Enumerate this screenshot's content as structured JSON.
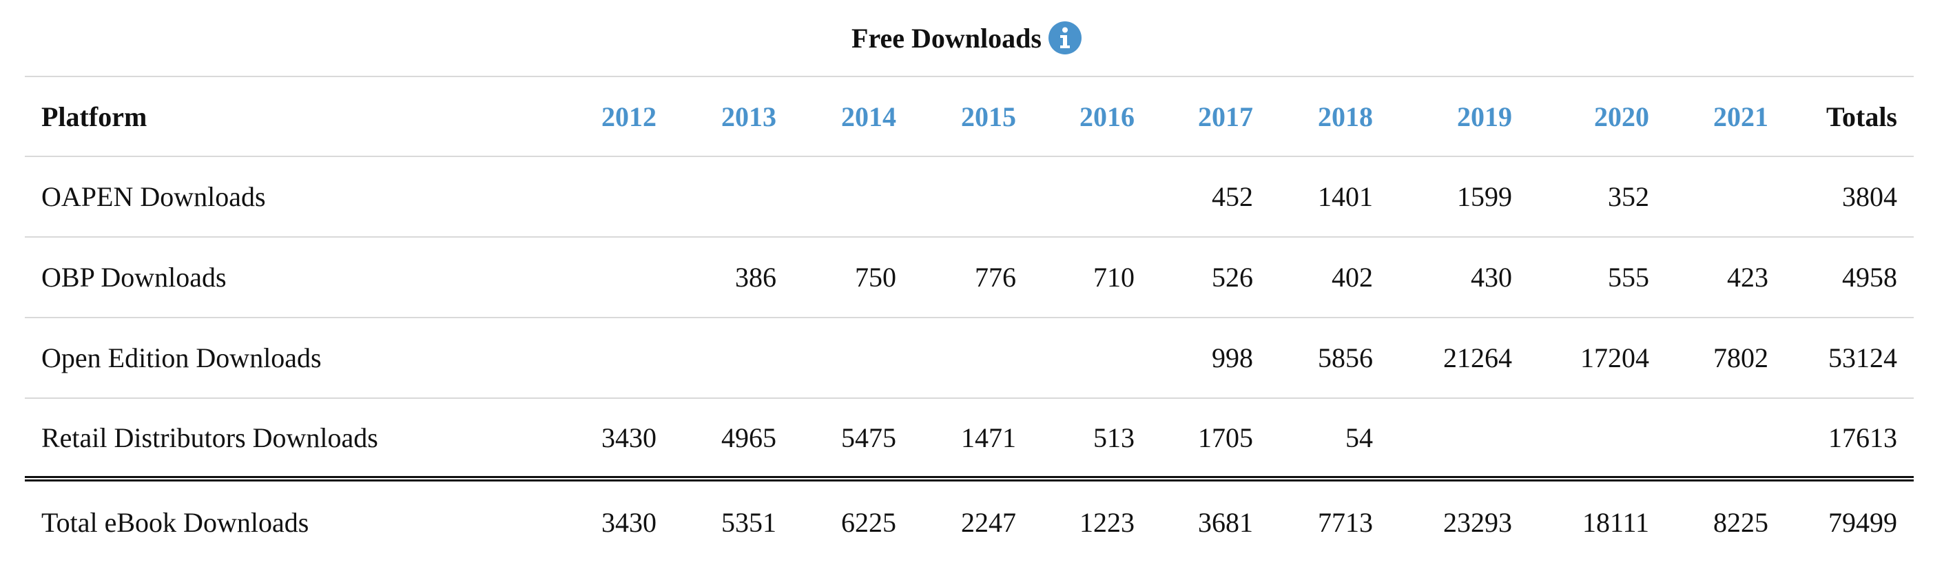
{
  "title": "Free Downloads",
  "info_icon": "info-circle-icon",
  "colors": {
    "year_link": "#4a93cc",
    "info_icon_fill": "#4a93cc",
    "divider": "#d9d9d9",
    "text": "#111111"
  },
  "table": {
    "platform_header": "Platform",
    "years": [
      "2012",
      "2013",
      "2014",
      "2015",
      "2016",
      "2017",
      "2018",
      "2019",
      "2020",
      "2021"
    ],
    "totals_header": "Totals",
    "rows": [
      {
        "platform": "OAPEN Downloads",
        "values": [
          "",
          "",
          "",
          "",
          "",
          "452",
          "1401",
          "1599",
          "352",
          ""
        ],
        "total": "3804"
      },
      {
        "platform": "OBP Downloads",
        "values": [
          "",
          "386",
          "750",
          "776",
          "710",
          "526",
          "402",
          "430",
          "555",
          "423"
        ],
        "total": "4958"
      },
      {
        "platform": "Open Edition Downloads",
        "values": [
          "",
          "",
          "",
          "",
          "",
          "998",
          "5856",
          "21264",
          "17204",
          "7802"
        ],
        "total": "53124"
      },
      {
        "platform": "Retail Distributors Downloads",
        "values": [
          "3430",
          "4965",
          "5475",
          "1471",
          "513",
          "1705",
          "54",
          "",
          "",
          ""
        ],
        "total": "17613"
      }
    ],
    "footer": {
      "platform": "Total eBook Downloads",
      "values": [
        "3430",
        "5351",
        "6225",
        "2247",
        "1223",
        "3681",
        "7713",
        "23293",
        "18111",
        "8225"
      ],
      "total": "79499"
    }
  }
}
